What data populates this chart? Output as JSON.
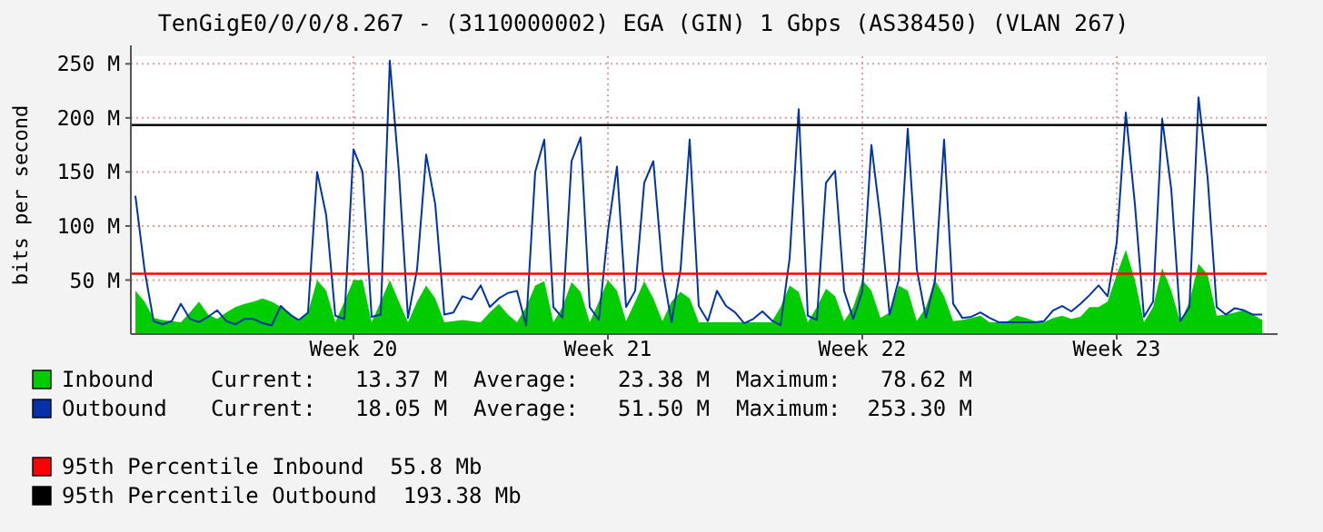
{
  "chart_data": {
    "type": "line",
    "title": "TenGigE0/0/0/8.267 - (3110000002) EGA (GIN) 1 Gbps (AS38450) (VLAN 267)",
    "ylabel": "bits per second",
    "categories": [
      null,
      null,
      null,
      null,
      null,
      null,
      null,
      null,
      null,
      null,
      null,
      null,
      null,
      null,
      null,
      null,
      null,
      null,
      null,
      null,
      null,
      null,
      null,
      null,
      "Week 20",
      null,
      null,
      null,
      null,
      null,
      null,
      null,
      null,
      null,
      null,
      null,
      null,
      null,
      null,
      null,
      null,
      null,
      null,
      null,
      null,
      null,
      null,
      null,
      null,
      null,
      null,
      null,
      "Week 21",
      null,
      null,
      null,
      null,
      null,
      null,
      null,
      null,
      null,
      null,
      null,
      null,
      null,
      null,
      null,
      null,
      null,
      null,
      null,
      null,
      null,
      null,
      null,
      null,
      null,
      null,
      null,
      "Week 22",
      null,
      null,
      null,
      null,
      null,
      null,
      null,
      null,
      null,
      null,
      null,
      null,
      null,
      null,
      null,
      null,
      null,
      null,
      null,
      null,
      null,
      null,
      null,
      null,
      null,
      null,
      null,
      "Week 23",
      null,
      null,
      null,
      null,
      null,
      null,
      null,
      null,
      null,
      null,
      null,
      null,
      null,
      null,
      null,
      null
    ],
    "ylim": [
      0,
      257
    ],
    "yticks": [
      {
        "value": 50,
        "label": "50 M"
      },
      {
        "value": 100,
        "label": "100 M"
      },
      {
        "value": 150,
        "label": "150 M"
      },
      {
        "value": 200,
        "label": "200 M"
      },
      {
        "value": 250,
        "label": "250 M"
      }
    ],
    "grid": true,
    "legend": "bottom",
    "series": [
      {
        "name": "Inbound",
        "type": "area",
        "color": "#00cc00",
        "values": [
          40,
          30,
          15,
          13,
          12,
          11,
          20,
          30,
          18,
          14,
          20,
          25,
          28,
          30,
          33,
          30,
          25,
          20,
          12,
          20,
          50,
          40,
          11,
          30,
          50,
          50,
          11,
          30,
          50,
          30,
          11,
          30,
          45,
          33,
          11,
          12,
          13,
          12,
          11,
          20,
          28,
          18,
          11,
          25,
          45,
          49,
          11,
          25,
          48,
          39,
          11,
          30,
          50,
          40,
          12,
          30,
          49,
          33,
          12,
          30,
          39,
          33,
          11,
          11,
          11,
          11,
          11,
          11,
          11,
          11,
          11,
          25,
          45,
          39,
          11,
          25,
          42,
          35,
          12,
          25,
          50,
          40,
          15,
          20,
          45,
          40,
          12,
          25,
          50,
          35,
          12,
          13,
          15,
          17,
          11,
          11,
          12,
          17,
          15,
          12,
          11,
          15,
          17,
          14,
          16,
          25,
          25,
          30,
          55,
          78,
          50,
          11,
          25,
          61,
          40,
          11,
          30,
          65,
          55,
          17,
          18,
          20,
          22,
          18,
          13
        ]
      },
      {
        "name": "Outbound",
        "color": "#0033aa",
        "values": [
          128,
          60,
          12,
          9,
          12,
          28,
          14,
          11,
          16,
          22,
          12,
          9,
          14,
          14,
          10,
          8,
          26,
          18,
          13,
          20,
          150,
          110,
          17,
          14,
          171,
          150,
          16,
          18,
          253,
          150,
          15,
          60,
          166,
          120,
          18,
          20,
          35,
          32,
          45,
          25,
          33,
          38,
          40,
          8,
          150,
          180,
          25,
          15,
          160,
          182,
          25,
          13,
          95,
          155,
          25,
          40,
          140,
          160,
          60,
          11,
          60,
          180,
          26,
          12,
          40,
          26,
          20,
          10,
          14,
          21,
          13,
          8,
          70,
          208,
          17,
          13,
          140,
          151,
          40,
          14,
          40,
          175,
          106,
          18,
          50,
          190,
          60,
          15,
          50,
          180,
          28,
          15,
          16,
          20,
          15,
          11,
          11,
          11,
          11,
          11,
          12,
          22,
          26,
          21,
          28,
          36,
          45,
          35,
          85,
          205,
          120,
          16,
          30,
          199,
          134,
          12,
          25,
          219,
          145,
          25,
          18,
          24,
          22,
          18,
          18
        ]
      }
    ],
    "ref_lines": [
      {
        "axis": "y",
        "value": 55.8,
        "label": "95th Percentile Inbound  55.8 Mb",
        "color": "#ff0000"
      },
      {
        "axis": "y",
        "value": 193.38,
        "label": "95th Percentile Outbound  193.38 Mb",
        "color": "#000000"
      }
    ],
    "annotations": [
      "Current:   13.37 M  Average:   23.38 M  Maximum:   78.62 M",
      "Current:   18.05 M  Average:   51.50 M  Maximum:  253.30 M"
    ]
  }
}
